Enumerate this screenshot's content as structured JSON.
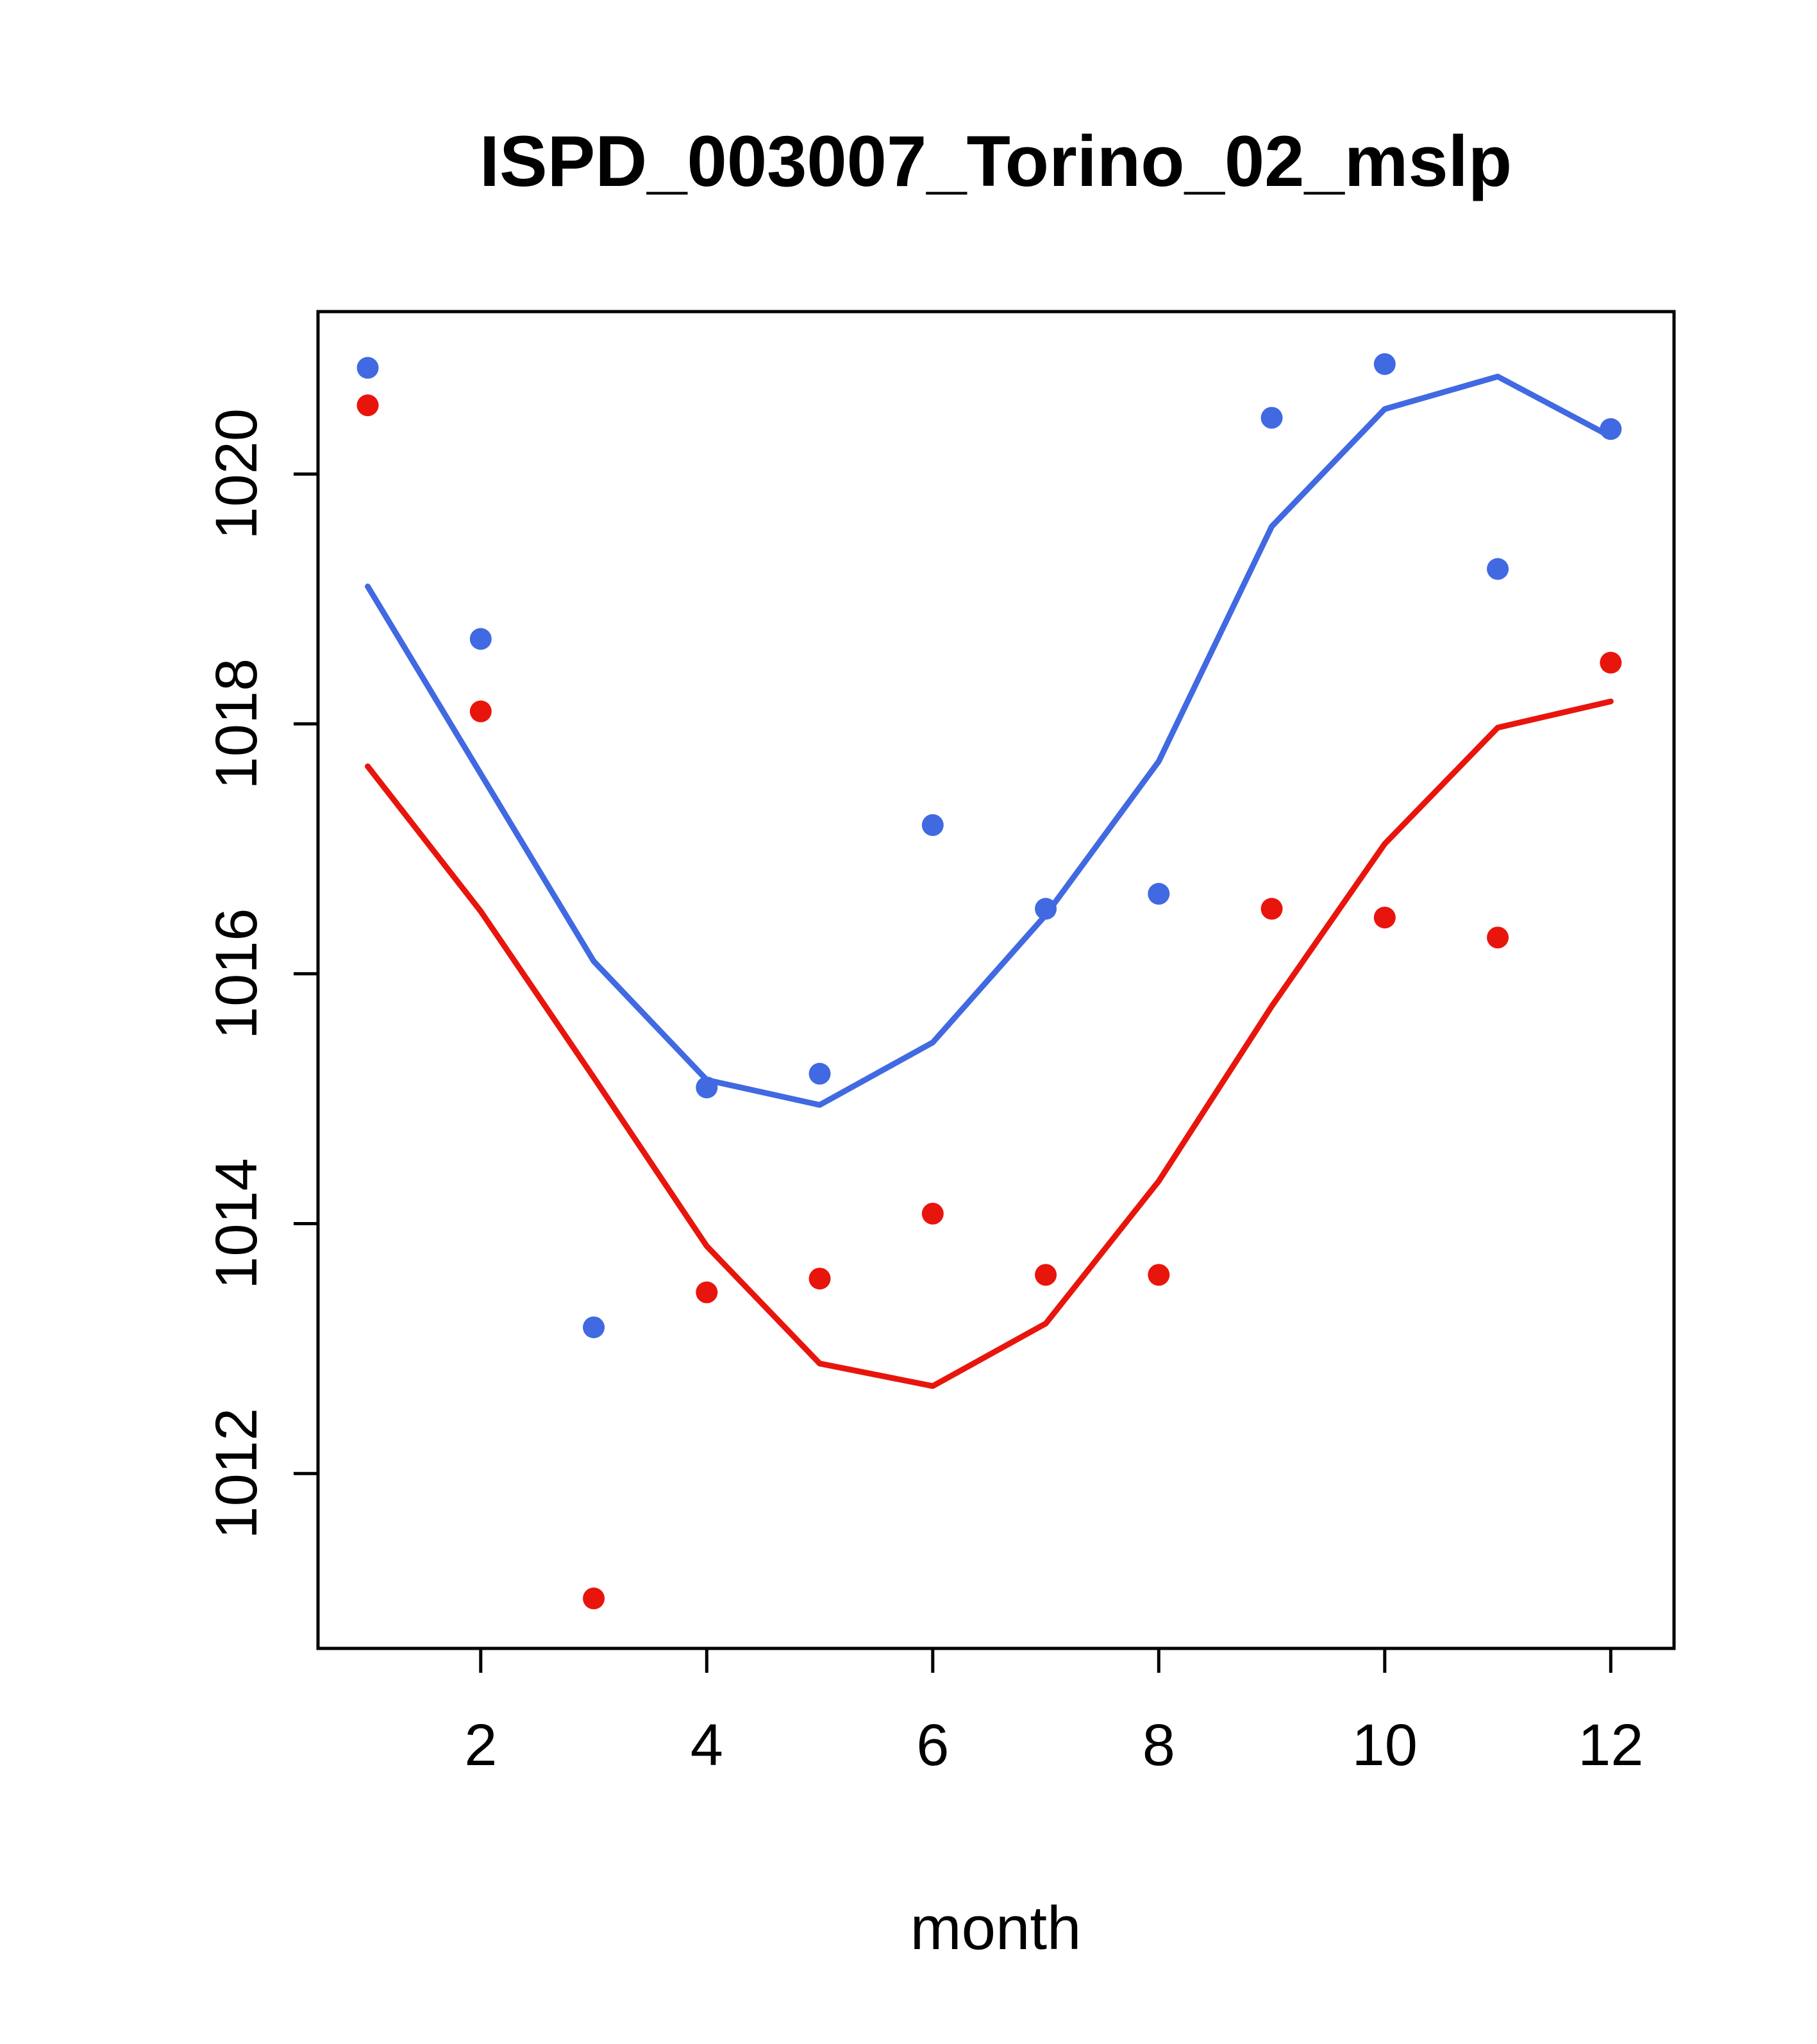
{
  "chart_data": {
    "type": "line",
    "title": "ISPD_003007_Torino_02_mslp",
    "xlabel": "month",
    "ylabel": "",
    "x": [
      1,
      2,
      3,
      4,
      5,
      6,
      7,
      8,
      9,
      10,
      11,
      12
    ],
    "xticks": [
      2,
      4,
      6,
      8,
      10,
      12
    ],
    "yticks": [
      1012,
      1014,
      1016,
      1018,
      1020
    ],
    "xlim": [
      0.56,
      12.56
    ],
    "ylim": [
      1010.6,
      1021.3
    ],
    "grid": false,
    "legend": "none",
    "colors": {
      "blue": "#4169E1",
      "red": "#E8150D",
      "axis": "#000000"
    },
    "series": [
      {
        "name": "blue-points",
        "style": "points",
        "color": "#4169E1",
        "values": [
          1020.85,
          1018.68,
          1013.17,
          1015.09,
          1015.2,
          1017.19,
          1016.52,
          1016.64,
          1020.45,
          1020.88,
          1019.24,
          1020.36
        ]
      },
      {
        "name": "blue-line",
        "style": "line",
        "color": "#4169E1",
        "values": [
          1019.1,
          1017.6,
          1016.1,
          1015.15,
          1014.95,
          1015.45,
          1016.47,
          1017.7,
          1019.58,
          1020.52,
          1020.78,
          1020.3
        ]
      },
      {
        "name": "red-points",
        "style": "points",
        "color": "#E8150D",
        "values": [
          1020.55,
          1018.1,
          1011.0,
          1013.45,
          1013.56,
          1014.08,
          1013.59,
          1013.59,
          1016.52,
          1016.45,
          1016.29,
          1018.49
        ]
      },
      {
        "name": "red-line",
        "style": "line",
        "color": "#E8150D",
        "values": [
          1017.66,
          1016.5,
          1015.17,
          1013.82,
          1012.88,
          1012.7,
          1013.2,
          1014.34,
          1015.74,
          1017.04,
          1017.97,
          1018.18
        ]
      }
    ]
  }
}
